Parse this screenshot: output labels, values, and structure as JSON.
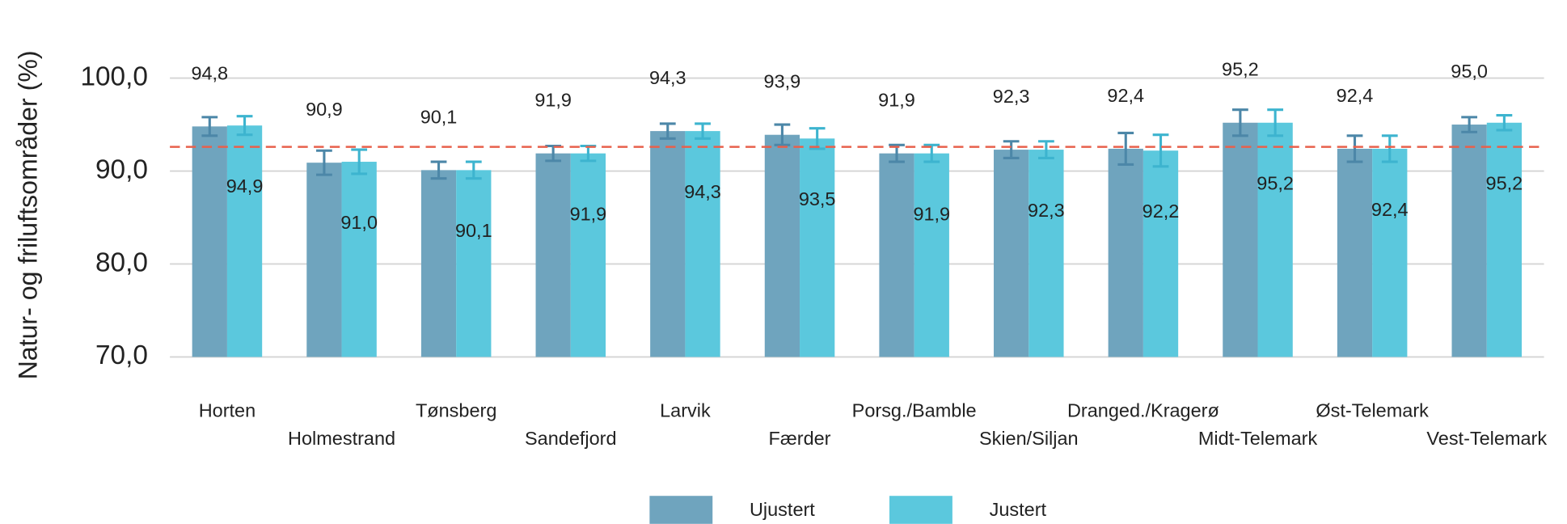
{
  "chart_data": {
    "type": "bar",
    "y_label": "Natur- og friluftsområder (%)",
    "categories": [
      "Horten",
      "Holmestrand",
      "Tønsberg",
      "Sandefjord",
      "Larvik",
      "Færder",
      "Porsg./Bamble",
      "Skien/Siljan",
      "Dranged./Kragerø",
      "Midt-Telemark",
      "Øst-Telemark",
      "Vest-Telemark"
    ],
    "series": [
      {
        "name": "Ujustert",
        "color": "#6fa4be",
        "error_color": "#4c87a8",
        "values": [
          94.8,
          90.9,
          90.1,
          91.9,
          94.3,
          93.9,
          91.9,
          92.3,
          92.4,
          95.2,
          92.4,
          95.0
        ],
        "value_labels": [
          "94,8",
          "90,9",
          "90,1",
          "91,9",
          "94,3",
          "93,9",
          "91,9",
          "92,3",
          "92,4",
          "95,2",
          "92,4",
          "95,0"
        ],
        "errors": [
          1.0,
          1.3,
          0.9,
          0.8,
          0.8,
          1.1,
          0.9,
          0.9,
          1.7,
          1.4,
          1.4,
          0.8
        ]
      },
      {
        "name": "Justert",
        "color": "#5bc8dd",
        "error_color": "#3db4cf",
        "values": [
          94.9,
          91.0,
          90.1,
          91.9,
          94.3,
          93.5,
          91.9,
          92.3,
          92.2,
          95.2,
          92.4,
          95.2
        ],
        "value_labels": [
          "94,9",
          "91,0",
          "90,1",
          "91,9",
          "94,3",
          "93,5",
          "91,9",
          "92,3",
          "92,2",
          "95,2",
          "92,4",
          "95,2"
        ],
        "errors": [
          1.0,
          1.3,
          0.9,
          0.8,
          0.8,
          1.1,
          0.9,
          0.9,
          1.7,
          1.4,
          1.4,
          0.8
        ]
      }
    ],
    "reference_line": {
      "value": 92.6,
      "color": "#e8604c"
    },
    "ylim": [
      70,
      100
    ],
    "yticks": [
      {
        "value": 70,
        "label": "70,0"
      },
      {
        "value": 80,
        "label": "80,0"
      },
      {
        "value": 90,
        "label": "90,0"
      },
      {
        "value": 100,
        "label": "100,0"
      }
    ],
    "grid": true,
    "legend": "bottom"
  }
}
